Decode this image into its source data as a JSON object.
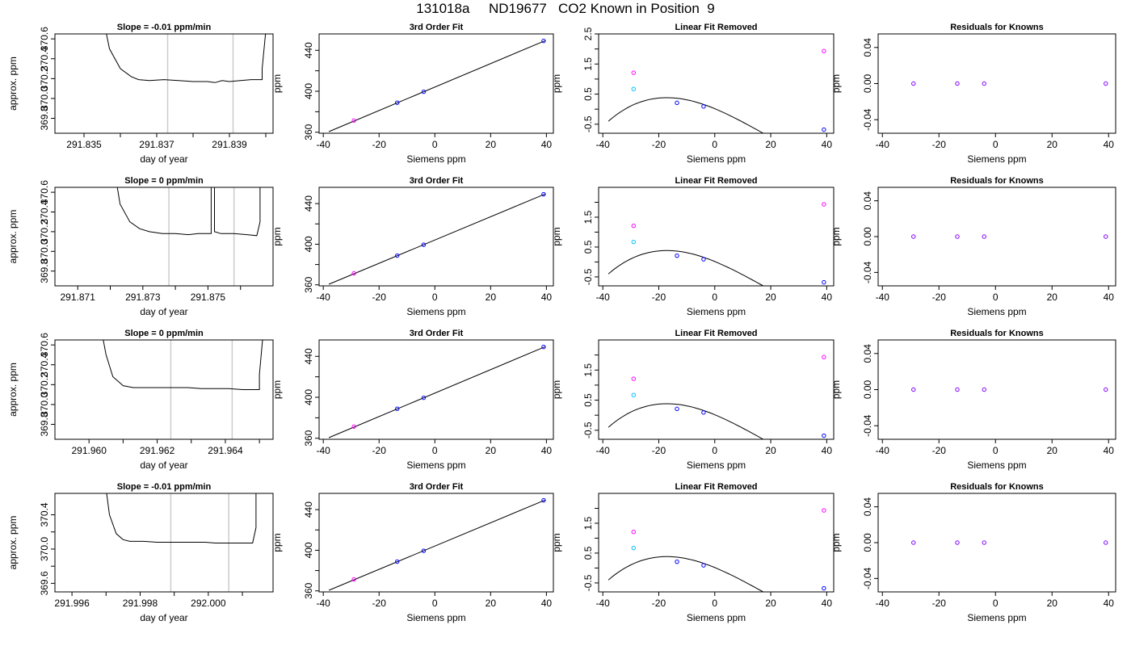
{
  "page_title": "131018a     ND19677   CO2 Known in Position  9",
  "colors": {
    "line": "#000000",
    "marker_line": "#cccccc",
    "blue": "#0000ff",
    "magenta": "#ff00ff",
    "cyan": "#00bfff",
    "purple": "#8000ff"
  },
  "chart_data": [
    {
      "id": "r1-time",
      "type": "line",
      "title": "Slope =  -0.01  ppm/min",
      "xlabel": "day of year",
      "ylabel": "approx. ppm",
      "xlim": [
        291.8342,
        291.8402
      ],
      "ylim": [
        369.65,
        370.65
      ],
      "xticks": [
        291.835,
        291.836,
        291.837,
        291.838,
        291.839,
        291.84
      ],
      "xtick_labels": [
        "291.835",
        "",
        "291.837",
        "",
        "291.839",
        ""
      ],
      "yticks": [
        369.8,
        370.0,
        370.2,
        370.4,
        370.6
      ],
      "ytick_labels": [
        "369.8",
        "370.0",
        "370.2",
        "370.4",
        "370.6"
      ],
      "vlines": [
        291.8373,
        291.8391
      ],
      "series": {
        "x": [
          291.8356,
          291.8357,
          291.836,
          291.8363,
          291.8365,
          291.8368,
          291.8372,
          291.8376,
          291.838,
          291.8384,
          291.8386,
          291.8388,
          291.839,
          291.8393,
          291.8396,
          291.8399,
          291.8399,
          291.84
        ],
        "y": [
          370.68,
          370.5,
          370.3,
          370.22,
          370.19,
          370.18,
          370.19,
          370.18,
          370.17,
          370.17,
          370.16,
          370.18,
          370.17,
          370.18,
          370.19,
          370.19,
          370.3,
          370.68
        ]
      }
    },
    {
      "id": "r1-fit",
      "type": "line",
      "title": "3rd Order Fit",
      "xlabel": "Siemens ppm",
      "ylabel": "ppm",
      "xlim": [
        -41.5,
        42.5
      ],
      "ylim": [
        359,
        456
      ],
      "xticks": [
        -40,
        -20,
        0,
        20,
        40
      ],
      "xtick_labels": [
        "-40",
        "-20",
        "0",
        "20",
        "40"
      ],
      "yticks": [
        360,
        380,
        400,
        420,
        440
      ],
      "ytick_labels": [
        "360",
        "",
        "400",
        "",
        "440"
      ],
      "curve": {
        "x": [
          -38,
          39.5
        ],
        "y": [
          360.6,
          449.4
        ]
      },
      "points": {
        "x": [
          -29,
          -13.5,
          -4,
          39
        ],
        "y": [
          371.4,
          388.8,
          399.5,
          449.2
        ],
        "colors": [
          "magenta",
          "blue",
          "blue",
          "blue"
        ]
      }
    },
    {
      "id": "r1-lin",
      "type": "scatter",
      "title": "Linear Fit Removed",
      "xlabel": "Siemens ppm",
      "ylabel": "ppm",
      "xlim": [
        -41.5,
        42.5
      ],
      "ylim": [
        -0.8,
        2.5
      ],
      "xticks": [
        -40,
        -20,
        0,
        20,
        40
      ],
      "xtick_labels": [
        "-40",
        "-20",
        "0",
        "20",
        "40"
      ],
      "yticks": [
        -0.5,
        0,
        0.5,
        1,
        1.5,
        2,
        2.5
      ],
      "ytick_labels": [
        "-0.5",
        "",
        "0.5",
        "",
        "1.5",
        "",
        "2.5"
      ],
      "poly": [
        0.0155,
        -0.0385,
        -0.00075,
        1.45e-05
      ],
      "curve_range": [
        -38,
        39.5
      ],
      "points": {
        "x": [
          -29,
          -29,
          -13.5,
          -4,
          39,
          39
        ],
        "y": [
          1.21,
          0.67,
          0.21,
          0.09,
          -0.68,
          1.93
        ],
        "colors": [
          "magenta",
          "cyan",
          "blue",
          "blue",
          "blue",
          "magenta"
        ]
      }
    },
    {
      "id": "r1-res",
      "type": "scatter",
      "title": "Residuals for Knowns",
      "xlabel": "Siemens ppm",
      "ylabel": "ppm",
      "xlim": [
        -41.5,
        42.5
      ],
      "ylim": [
        -0.055,
        0.055
      ],
      "xticks": [
        -40,
        -20,
        0,
        20,
        40
      ],
      "xtick_labels": [
        "-40",
        "-20",
        "0",
        "20",
        "40"
      ],
      "yticks": [
        -0.04,
        0,
        0.04
      ],
      "ytick_labels": [
        "-0.04",
        "0.00",
        "0.04"
      ],
      "points": {
        "x": [
          -29,
          -13.5,
          -4,
          39
        ],
        "y": [
          0,
          0,
          0,
          0
        ],
        "colors": [
          "purple",
          "purple",
          "purple",
          "purple"
        ]
      }
    },
    {
      "id": "r2-time",
      "type": "line",
      "title": "Slope =  0  ppm/min",
      "xlabel": "day of year",
      "ylabel": "approx. ppm",
      "xlim": [
        291.8703,
        291.877
      ],
      "ylim": [
        369.65,
        370.65
      ],
      "xticks": [
        291.871,
        291.872,
        291.873,
        291.874,
        291.875,
        291.876
      ],
      "xtick_labels": [
        "291.871",
        "",
        "291.873",
        "",
        "291.875",
        ""
      ],
      "yticks": [
        369.8,
        370.0,
        370.2,
        370.4,
        370.6
      ],
      "ytick_labels": [
        "369.8",
        "370.0",
        "370.2",
        "370.4",
        "370.6"
      ],
      "vlines": [
        291.8738,
        291.8758
      ],
      "series": {
        "x": [
          291.8722,
          291.8723,
          291.8726,
          291.8729,
          291.8732,
          291.8736,
          291.874,
          291.8744,
          291.8747,
          291.8751,
          291.8751,
          291.8752,
          291.8752,
          291.8754,
          291.8758,
          291.8762,
          291.8765,
          291.8766,
          291.8766
        ],
        "y": [
          370.68,
          370.48,
          370.3,
          370.23,
          370.2,
          370.18,
          370.18,
          370.17,
          370.18,
          370.18,
          370.68,
          370.68,
          370.2,
          370.18,
          370.18,
          370.17,
          370.16,
          370.3,
          370.68
        ]
      }
    },
    {
      "id": "r2-fit",
      "type": "line",
      "title": "3rd Order Fit",
      "xlabel": "Siemens ppm",
      "ylabel": "ppm",
      "xlim": [
        -41.5,
        42.5
      ],
      "ylim": [
        359,
        456
      ],
      "xticks": [
        -40,
        -20,
        0,
        20,
        40
      ],
      "xtick_labels": [
        "-40",
        "-20",
        "0",
        "20",
        "40"
      ],
      "yticks": [
        360,
        380,
        400,
        420,
        440
      ],
      "ytick_labels": [
        "360",
        "",
        "400",
        "",
        "440"
      ],
      "curve": {
        "x": [
          -38,
          39.5
        ],
        "y": [
          360.6,
          449.4
        ]
      },
      "points": {
        "x": [
          -29,
          -13.5,
          -4,
          39
        ],
        "y": [
          371.4,
          388.8,
          399.5,
          449.2
        ],
        "colors": [
          "magenta",
          "blue",
          "blue",
          "blue"
        ]
      }
    },
    {
      "id": "r2-lin",
      "type": "scatter",
      "title": "Linear Fit Removed",
      "xlabel": "Siemens ppm",
      "ylabel": "ppm",
      "xlim": [
        -41.5,
        42.5
      ],
      "ylim": [
        -0.8,
        2.5
      ],
      "xticks": [
        -40,
        -20,
        0,
        20,
        40
      ],
      "xtick_labels": [
        "-40",
        "-20",
        "0",
        "20",
        "40"
      ],
      "yticks": [
        -0.5,
        0,
        0.5,
        1,
        1.5,
        2
      ],
      "ytick_labels": [
        "-0.5",
        "",
        "0.5",
        "",
        "1.5",
        ""
      ],
      "poly": [
        0.0155,
        -0.0385,
        -0.00075,
        1.45e-05
      ],
      "curve_range": [
        -38,
        39.5
      ],
      "points": {
        "x": [
          -29,
          -29,
          -13.5,
          -4,
          39,
          39
        ],
        "y": [
          1.21,
          0.67,
          0.21,
          0.09,
          -0.68,
          1.93
        ],
        "colors": [
          "magenta",
          "cyan",
          "blue",
          "blue",
          "blue",
          "magenta"
        ]
      }
    },
    {
      "id": "r2-res",
      "type": "scatter",
      "title": "Residuals for Knowns",
      "xlabel": "Siemens ppm",
      "ylabel": "ppm",
      "xlim": [
        -41.5,
        42.5
      ],
      "ylim": [
        -0.055,
        0.055
      ],
      "xticks": [
        -40,
        -20,
        0,
        20,
        40
      ],
      "xtick_labels": [
        "-40",
        "-20",
        "0",
        "20",
        "40"
      ],
      "yticks": [
        -0.04,
        0,
        0.04
      ],
      "ytick_labels": [
        "-0.04",
        "0.00",
        "0.04"
      ],
      "points": {
        "x": [
          -29,
          -13.5,
          -4,
          39
        ],
        "y": [
          0,
          0,
          0,
          0
        ],
        "colors": [
          "purple",
          "purple",
          "purple",
          "purple"
        ]
      }
    },
    {
      "id": "r3-time",
      "type": "line",
      "title": "Slope =  0  ppm/min",
      "xlabel": "day of year",
      "ylabel": "approx. ppm",
      "xlim": [
        291.959,
        291.9654
      ],
      "ylim": [
        369.65,
        370.65
      ],
      "xticks": [
        291.96,
        291.961,
        291.962,
        291.963,
        291.964,
        291.965
      ],
      "xtick_labels": [
        "291.960",
        "",
        "291.962",
        "",
        "291.964",
        ""
      ],
      "yticks": [
        369.8,
        370.0,
        370.2,
        370.4,
        370.6
      ],
      "ytick_labels": [
        "369.8",
        "370.0",
        "370.2",
        "370.4",
        "370.6"
      ],
      "vlines": [
        291.9624,
        291.9642
      ],
      "series": {
        "x": [
          291.9604,
          291.9605,
          291.9607,
          291.961,
          291.9613,
          291.9617,
          291.9621,
          291.9625,
          291.9629,
          291.9633,
          291.9637,
          291.9641,
          291.9645,
          291.9648,
          291.965,
          291.965,
          291.9651
        ],
        "y": [
          370.68,
          370.5,
          370.28,
          370.19,
          370.17,
          370.17,
          370.17,
          370.17,
          370.17,
          370.16,
          370.16,
          370.16,
          370.15,
          370.15,
          370.15,
          370.3,
          370.68
        ]
      }
    },
    {
      "id": "r3-fit",
      "type": "line",
      "title": "3rd Order Fit",
      "xlabel": "Siemens ppm",
      "ylabel": "ppm",
      "xlim": [
        -41.5,
        42.5
      ],
      "ylim": [
        359,
        456
      ],
      "xticks": [
        -40,
        -20,
        0,
        20,
        40
      ],
      "xtick_labels": [
        "-40",
        "-20",
        "0",
        "20",
        "40"
      ],
      "yticks": [
        360,
        380,
        400,
        420,
        440
      ],
      "ytick_labels": [
        "360",
        "",
        "400",
        "",
        "440"
      ],
      "curve": {
        "x": [
          -38,
          39.5
        ],
        "y": [
          360.6,
          449.4
        ]
      },
      "points": {
        "x": [
          -29,
          -13.5,
          -4,
          39
        ],
        "y": [
          371.4,
          388.8,
          399.5,
          449.2
        ],
        "colors": [
          "magenta",
          "blue",
          "blue",
          "blue"
        ]
      }
    },
    {
      "id": "r3-lin",
      "type": "scatter",
      "title": "Linear Fit Removed",
      "xlabel": "Siemens ppm",
      "ylabel": "ppm",
      "xlim": [
        -41.5,
        42.5
      ],
      "ylim": [
        -0.8,
        2.5
      ],
      "xticks": [
        -40,
        -20,
        0,
        20,
        40
      ],
      "xtick_labels": [
        "-40",
        "-20",
        "0",
        "20",
        "40"
      ],
      "yticks": [
        -0.5,
        0,
        0.5,
        1,
        1.5,
        2
      ],
      "ytick_labels": [
        "-0.5",
        "",
        "0.5",
        "",
        "1.5",
        ""
      ],
      "poly": [
        0.0155,
        -0.0385,
        -0.00075,
        1.45e-05
      ],
      "curve_range": [
        -38,
        39.5
      ],
      "points": {
        "x": [
          -29,
          -29,
          -13.5,
          -4,
          39,
          39
        ],
        "y": [
          1.21,
          0.67,
          0.21,
          0.09,
          -0.68,
          1.93
        ],
        "colors": [
          "magenta",
          "cyan",
          "blue",
          "blue",
          "blue",
          "magenta"
        ]
      }
    },
    {
      "id": "r3-res",
      "type": "scatter",
      "title": "Residuals for Knowns",
      "xlabel": "Siemens ppm",
      "ylabel": "ppm",
      "xlim": [
        -41.5,
        42.5
      ],
      "ylim": [
        -0.055,
        0.055
      ],
      "xticks": [
        -40,
        -20,
        0,
        20,
        40
      ],
      "xtick_labels": [
        "-40",
        "-20",
        "0",
        "20",
        "40"
      ],
      "yticks": [
        -0.04,
        0,
        0.04
      ],
      "ytick_labels": [
        "-0.04",
        "0.00",
        "0.04"
      ],
      "points": {
        "x": [
          -29,
          -13.5,
          -4,
          39
        ],
        "y": [
          0,
          0,
          0,
          0
        ],
        "colors": [
          "purple",
          "purple",
          "purple",
          "purple"
        ]
      }
    },
    {
      "id": "r4-time",
      "type": "line",
      "title": "Slope =  -0.01  ppm/min",
      "xlabel": "day of year",
      "ylabel": "approx. ppm",
      "xlim": [
        291.9955,
        292.0019
      ],
      "ylim": [
        369.5,
        370.65
      ],
      "xticks": [
        291.996,
        291.997,
        291.998,
        291.999,
        292.0,
        292.001
      ],
      "xtick_labels": [
        "291.996",
        "",
        "291.998",
        "",
        "292.000",
        ""
      ],
      "yticks": [
        369.6,
        369.8,
        370.0,
        370.2,
        370.4
      ],
      "ytick_labels": [
        "369.6",
        "",
        "370.0",
        "",
        "370.4"
      ],
      "vlines": [
        291.9989,
        292.0006
      ],
      "series": {
        "x": [
          291.997,
          291.9971,
          291.9973,
          291.9975,
          291.9977,
          291.9981,
          291.9985,
          291.9989,
          291.9993,
          291.9996,
          291.9999,
          292.0002,
          292.0006,
          292.001,
          292.0013,
          292.0014,
          292.0014
        ],
        "y": [
          370.7,
          370.4,
          370.18,
          370.11,
          370.09,
          370.09,
          370.08,
          370.08,
          370.08,
          370.08,
          370.08,
          370.07,
          370.07,
          370.07,
          370.07,
          370.25,
          370.7
        ]
      }
    },
    {
      "id": "r4-fit",
      "type": "line",
      "title": "3rd Order Fit",
      "xlabel": "Siemens ppm",
      "ylabel": "ppm",
      "xlim": [
        -41.5,
        42.5
      ],
      "ylim": [
        359,
        456
      ],
      "xticks": [
        -40,
        -20,
        0,
        20,
        40
      ],
      "xtick_labels": [
        "-40",
        "-20",
        "0",
        "20",
        "40"
      ],
      "yticks": [
        360,
        380,
        400,
        420,
        440
      ],
      "ytick_labels": [
        "360",
        "",
        "400",
        "",
        "440"
      ],
      "curve": {
        "x": [
          -38,
          39.5
        ],
        "y": [
          360.6,
          449.4
        ]
      },
      "points": {
        "x": [
          -29,
          -13.5,
          -4,
          39
        ],
        "y": [
          371.4,
          388.8,
          399.5,
          449.2
        ],
        "colors": [
          "magenta",
          "blue",
          "blue",
          "blue"
        ]
      }
    },
    {
      "id": "r4-lin",
      "type": "scatter",
      "title": "Linear Fit Removed",
      "xlabel": "Siemens ppm",
      "ylabel": "ppm",
      "xlim": [
        -41.5,
        42.5
      ],
      "ylim": [
        -0.8,
        2.5
      ],
      "xticks": [
        -40,
        -20,
        0,
        20,
        40
      ],
      "xtick_labels": [
        "-40",
        "-20",
        "0",
        "20",
        "40"
      ],
      "yticks": [
        -0.5,
        0,
        0.5,
        1,
        1.5,
        2
      ],
      "ytick_labels": [
        "-0.5",
        "",
        "0.5",
        "",
        "1.5",
        ""
      ],
      "poly": [
        0.0155,
        -0.0385,
        -0.00075,
        1.45e-05
      ],
      "curve_range": [
        -38,
        39.5
      ],
      "points": {
        "x": [
          -29,
          -29,
          -13.5,
          -4,
          39,
          39
        ],
        "y": [
          1.21,
          0.67,
          0.21,
          0.09,
          -0.68,
          1.93
        ],
        "colors": [
          "magenta",
          "cyan",
          "blue",
          "blue",
          "blue",
          "magenta"
        ]
      }
    },
    {
      "id": "r4-res",
      "type": "scatter",
      "title": "Residuals for Knowns",
      "xlabel": "Siemens ppm",
      "ylabel": "ppm",
      "xlim": [
        -41.5,
        42.5
      ],
      "ylim": [
        -0.055,
        0.055
      ],
      "xticks": [
        -40,
        -20,
        0,
        20,
        40
      ],
      "xtick_labels": [
        "-40",
        "-20",
        "0",
        "20",
        "40"
      ],
      "yticks": [
        -0.04,
        0,
        0.04
      ],
      "ytick_labels": [
        "-0.04",
        "0.00",
        "0.04"
      ],
      "points": {
        "x": [
          -29,
          -13.5,
          -4,
          39
        ],
        "y": [
          0,
          0,
          0,
          0
        ],
        "colors": [
          "purple",
          "purple",
          "purple",
          "purple"
        ]
      }
    }
  ]
}
